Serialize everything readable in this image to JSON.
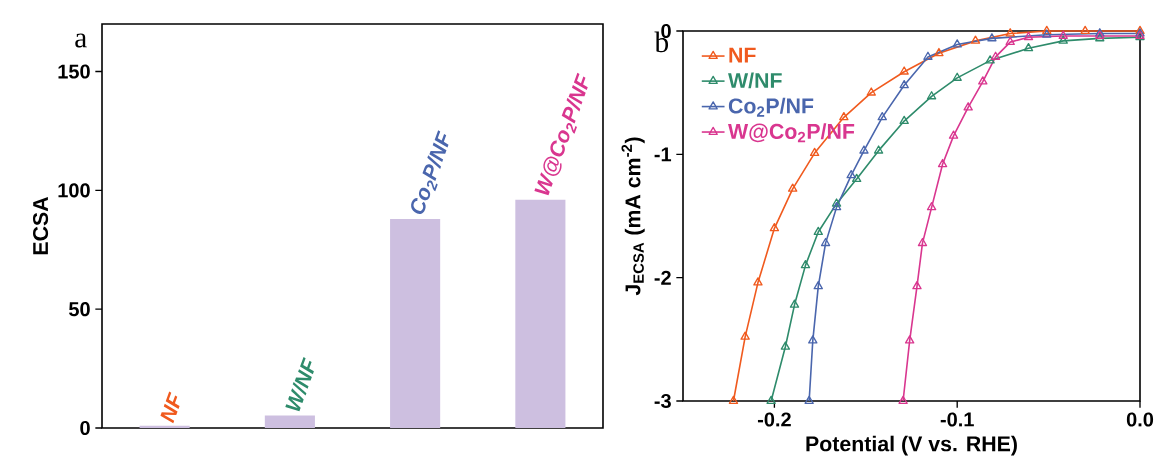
{
  "chart_data": [
    {
      "type": "bar",
      "categories": [
        null,
        null,
        null,
        null
      ],
      "values": [
        1,
        5.3,
        88,
        96
      ],
      "color": "#cdbfe0",
      "ylim": [
        0,
        170
      ],
      "yticks": [
        0,
        50,
        100,
        150
      ],
      "ylabel": "ECSA",
      "tick_labels": "y",
      "annotations": [
        "a",
        {
          "text": "NF",
          "y": 1
        },
        {
          "text": "W/NF",
          "y": 5.3
        },
        {
          "text": "Co$_{2}$P/NF",
          "y": 88
        },
        {
          "text": "W@Co$_{2}$P/NF",
          "y": 96
        }
      ]
    },
    {
      "type": "line",
      "xlabel": "Potential (V vs. RHE)",
      "ylabel": "J$_{ECSA}$ (mA cm$^{-2}$)",
      "xlim": [
        -0.25,
        0
      ],
      "ylim": [
        -3,
        0
      ],
      "xticks": [
        -0.2,
        -0.1,
        {
          "value": 0,
          "label": "0.0"
        }
      ],
      "yticks": [
        -3,
        -2,
        -1,
        0
      ],
      "legend": "top left",
      "marker": "triangle",
      "annotations": [
        "b"
      ],
      "series": [
        {
          "name": "NF",
          "color": "#f05a1e",
          "x": [
            -0.2224,
            -0.216,
            -0.209,
            -0.2,
            -0.19,
            -0.178,
            -0.162,
            -0.147,
            -0.129,
            -0.11,
            -0.09,
            -0.071,
            -0.051,
            -0.03,
            0
          ],
          "values": [
            -3,
            -2.48,
            -2.04,
            -1.6,
            -1.28,
            -0.99,
            -0.7,
            -0.5,
            -0.33,
            -0.18,
            -0.08,
            -0.02,
            0,
            0,
            0
          ]
        },
        {
          "name": "W/NF",
          "color": "#2e8b6b",
          "x": [
            -0.2018,
            -0.194,
            -0.189,
            -0.183,
            -0.176,
            -0.166,
            -0.155,
            -0.143,
            -0.129,
            -0.114,
            -0.1,
            -0.082,
            -0.061,
            -0.042,
            -0.022,
            0
          ],
          "values": [
            -3,
            -2.56,
            -2.22,
            -1.9,
            -1.63,
            -1.4,
            -1.2,
            -0.97,
            -0.73,
            -0.53,
            -0.38,
            -0.24,
            -0.14,
            -0.08,
            -0.06,
            -0.05
          ]
        },
        {
          "name": "Co$_{2}$P/NF",
          "color": "#4a66ad",
          "x": [
            -0.181,
            -0.179,
            -0.176,
            -0.172,
            -0.166,
            -0.158,
            -0.151,
            -0.141,
            -0.129,
            -0.116,
            -0.1,
            -0.081,
            -0.051,
            -0.022,
            0
          ],
          "values": [
            -3,
            -2.51,
            -2.07,
            -1.72,
            -1.43,
            -1.17,
            -0.97,
            -0.7,
            -0.44,
            -0.21,
            -0.11,
            -0.06,
            -0.03,
            -0.02,
            -0.02
          ]
        },
        {
          "name": "W@Co$_{2}$P/NF",
          "color": "#d9368f",
          "x": [
            -0.1296,
            -0.126,
            -0.122,
            -0.119,
            -0.114,
            -0.108,
            -0.102,
            -0.094,
            -0.086,
            -0.079,
            -0.071,
            -0.061,
            -0.042,
            -0.022,
            0
          ],
          "values": [
            -3,
            -2.51,
            -2.07,
            -1.72,
            -1.43,
            -1.08,
            -0.85,
            -0.62,
            -0.41,
            -0.21,
            -0.09,
            -0.05,
            -0.04,
            -0.04,
            -0.04
          ]
        }
      ]
    }
  ]
}
